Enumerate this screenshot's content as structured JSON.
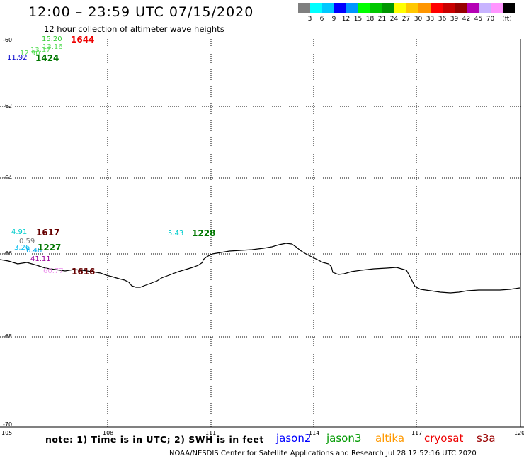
{
  "header": {
    "title": "12:00 – 23:59 UTC 07/15/2020",
    "subtitle": "12 hour collection of altimeter wave heights"
  },
  "legend": {
    "unit": "(ft)",
    "swatches": [
      {
        "color": "#7f7f7f",
        "label": ""
      },
      {
        "color": "#00ffff",
        "label": "3"
      },
      {
        "color": "#00c8ff",
        "label": "6"
      },
      {
        "color": "#0000ff",
        "label": "9"
      },
      {
        "color": "#0096ff",
        "label": "12"
      },
      {
        "color": "#00ff00",
        "label": "15"
      },
      {
        "color": "#00c800",
        "label": "18"
      },
      {
        "color": "#009600",
        "label": "21"
      },
      {
        "color": "#ffff00",
        "label": "24"
      },
      {
        "color": "#ffc800",
        "label": "27"
      },
      {
        "color": "#ff9600",
        "label": "30"
      },
      {
        "color": "#ff0000",
        "label": "33"
      },
      {
        "color": "#c80000",
        "label": "36"
      },
      {
        "color": "#960000",
        "label": "39"
      },
      {
        "color": "#b400b4",
        "label": "42"
      },
      {
        "color": "#c8b4ff",
        "label": "45"
      },
      {
        "color": "#ff96ff",
        "label": "70"
      },
      {
        "color": "#000000",
        "label": ""
      }
    ]
  },
  "map": {
    "lat_labels": [
      "-60",
      "-62",
      "-64",
      "-66",
      "-68",
      "-70"
    ],
    "lon_labels": [
      "105",
      "108",
      "111",
      "114",
      "117",
      "120"
    ],
    "swh_labels": [
      {
        "text": "15.20",
        "color": "#33cc33"
      },
      {
        "text": "13.17",
        "color": "#55dd55"
      },
      {
        "text": "13.16",
        "color": "#55dd55"
      },
      {
        "text": "12.90",
        "color": "#55dd55"
      },
      {
        "text": "11.92",
        "color": "#0000cc"
      },
      {
        "text": "4.91",
        "color": "#00cccc"
      },
      {
        "text": "0.59",
        "color": "#777777"
      },
      {
        "text": "3.26",
        "color": "#00bbee"
      },
      {
        "text": "6.48",
        "color": "#00aaee"
      },
      {
        "text": "41.11",
        "color": "#990099"
      },
      {
        "text": "60.77",
        "color": "#ee99ee"
      },
      {
        "text": "5.43",
        "color": "#00cccc"
      }
    ],
    "pass_labels": [
      {
        "text": "1644",
        "color": "#ee0000"
      },
      {
        "text": "1424",
        "color": "#007700"
      },
      {
        "text": "1617",
        "color": "#660000"
      },
      {
        "text": "1227",
        "color": "#007700"
      },
      {
        "text": "1616",
        "color": "#660000"
      },
      {
        "text": "1228",
        "color": "#007700"
      }
    ]
  },
  "footer": {
    "note": "note:  1) Time is in UTC;  2) SWH is in feet",
    "satellites": [
      {
        "name": "jason2",
        "color": "#0000ff"
      },
      {
        "name": "jason3",
        "color": "#009900"
      },
      {
        "name": "altika",
        "color": "#ff9900"
      },
      {
        "name": "cryosat",
        "color": "#ee0000"
      },
      {
        "name": "s3a",
        "color": "#990000"
      }
    ],
    "credit": "NOAA/NESDIS Center for Satellite Applications and Research    Jul 28 12:52:16 UTC 2020"
  }
}
